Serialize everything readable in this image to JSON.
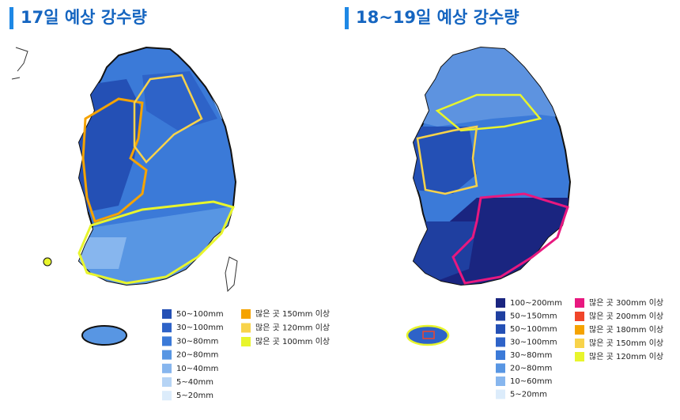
{
  "panels": [
    {
      "title": "17일 예상 강수량",
      "legend": [
        {
          "label": "50~100mm",
          "color": "#2450b5"
        },
        {
          "label": "30~100mm",
          "color": "#2e63c8"
        },
        {
          "label": "30~80mm",
          "color": "#3b7ad8"
        },
        {
          "label": "20~80mm",
          "color": "#5896e3"
        },
        {
          "label": "10~40mm",
          "color": "#87b6ee"
        },
        {
          "label": "5~40mm",
          "color": "#b6d4f5"
        },
        {
          "label": "5~20mm",
          "color": "#dcecfb"
        }
      ],
      "highlight_legend": [
        {
          "label": "많은 곳 150mm 이상",
          "color": "#f5a300"
        },
        {
          "label": "많은 곳 120mm 이상",
          "color": "#f8d34a"
        },
        {
          "label": "많은 곳 100mm 이상",
          "color": "#e8f52c"
        }
      ]
    },
    {
      "title": "18~19일 예상 강수량",
      "legend": [
        {
          "label": "100~200mm",
          "color": "#1a2580"
        },
        {
          "label": "50~150mm",
          "color": "#1f3fa0"
        },
        {
          "label": "50~100mm",
          "color": "#2450b5"
        },
        {
          "label": "30~100mm",
          "color": "#2e63c8"
        },
        {
          "label": "30~80mm",
          "color": "#3b7ad8"
        },
        {
          "label": "20~80mm",
          "color": "#5896e3"
        },
        {
          "label": "10~60mm",
          "color": "#87b6ee"
        },
        {
          "label": "5~20mm",
          "color": "#dcecfb"
        }
      ],
      "highlight_legend": [
        {
          "label": "많은 곳 300mm 이상",
          "color": "#e8187f"
        },
        {
          "label": "많은 곳 200mm 이상",
          "color": "#f0452a"
        },
        {
          "label": "많은 곳 180mm 이상",
          "color": "#f5a300"
        },
        {
          "label": "많은 곳 150mm 이상",
          "color": "#f8d34a"
        },
        {
          "label": "많은 곳 120mm 이상",
          "color": "#e8f52c"
        }
      ]
    }
  ]
}
